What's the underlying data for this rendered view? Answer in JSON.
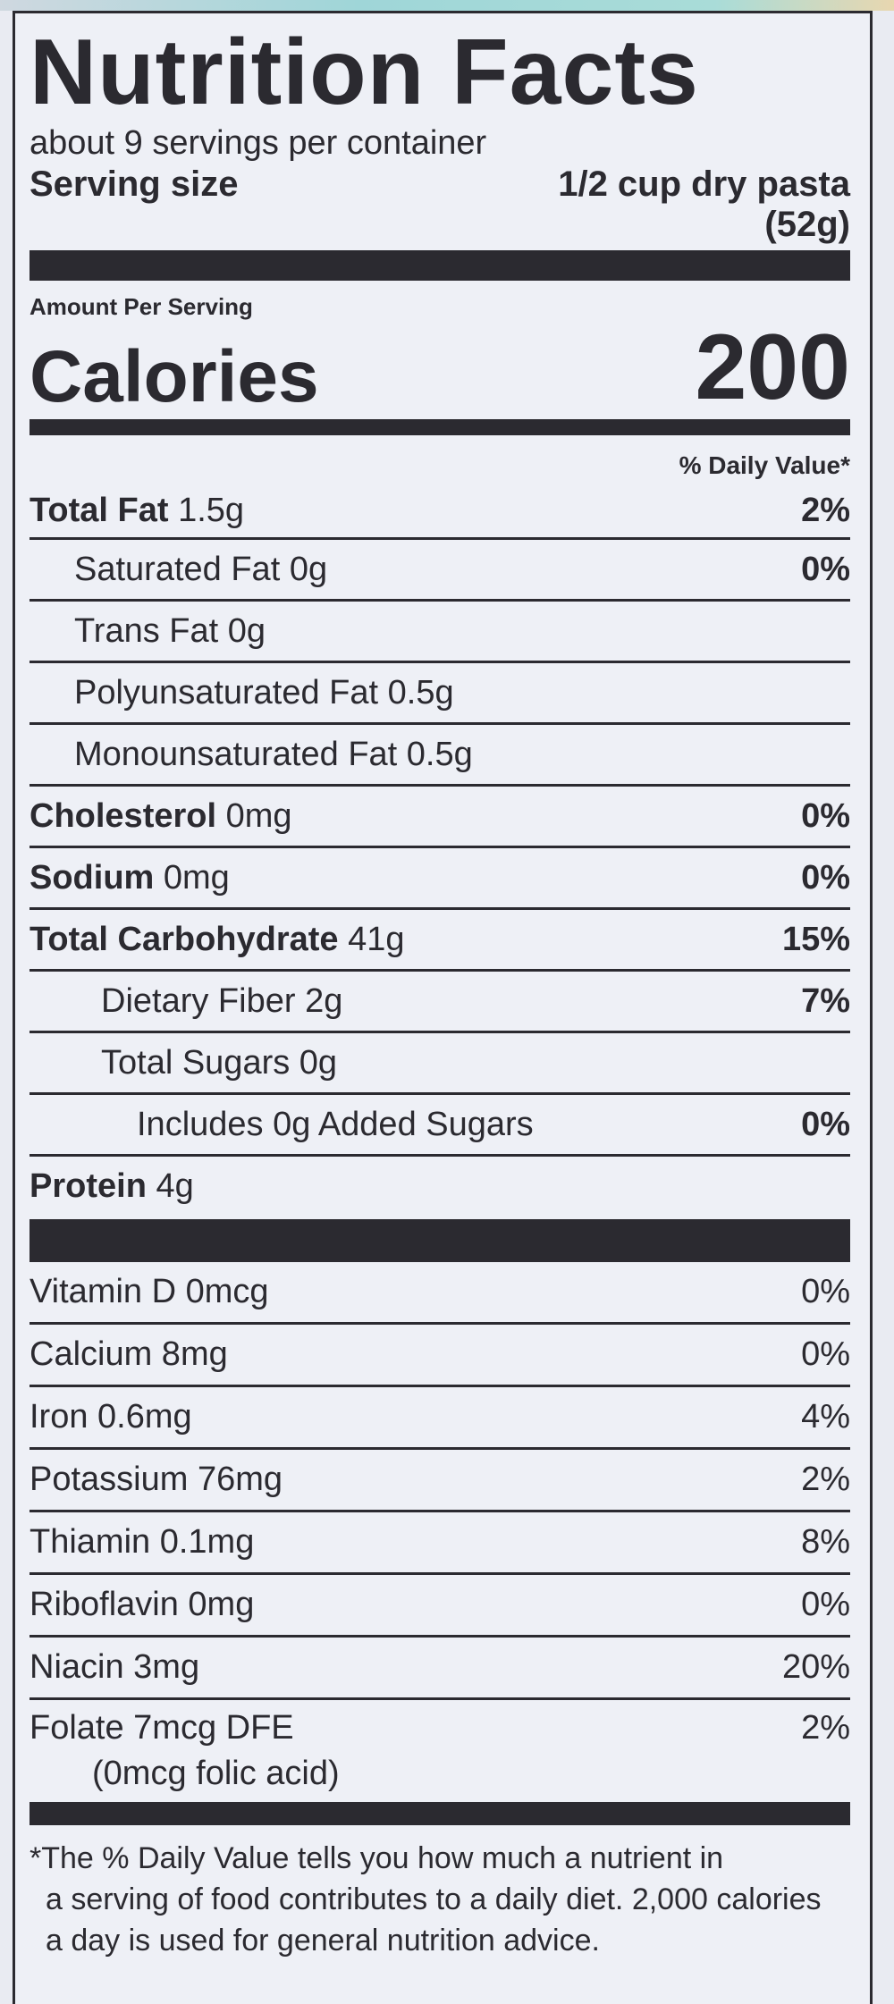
{
  "title": "Nutrition Facts",
  "servings_per_container": "about 9 servings per container",
  "serving_size": {
    "label": "Serving size",
    "value": "1/2 cup dry pasta",
    "grams": "(52g)"
  },
  "amount_per_serving": "Amount Per Serving",
  "calories": {
    "label": "Calories",
    "value": "200"
  },
  "daily_value_header": "% Daily Value*",
  "nutrients": [
    {
      "name": "Total Fat",
      "amount": "1.5g",
      "dv": "2%",
      "bold": true,
      "indent": 0
    },
    {
      "name": "Saturated Fat",
      "amount": "0g",
      "dv": "0%",
      "bold": false,
      "indent": 1
    },
    {
      "name": "Trans Fat",
      "amount": "0g",
      "dv": "",
      "bold": false,
      "indent": 1
    },
    {
      "name": "Polyunsaturated Fat",
      "amount": "0.5g",
      "dv": "",
      "bold": false,
      "indent": 1
    },
    {
      "name": "Monounsaturated Fat",
      "amount": "0.5g",
      "dv": "",
      "bold": false,
      "indent": 1
    },
    {
      "name": "Cholesterol",
      "amount": "0mg",
      "dv": "0%",
      "bold": true,
      "indent": 0
    },
    {
      "name": "Sodium",
      "amount": "0mg",
      "dv": "0%",
      "bold": true,
      "indent": 0
    },
    {
      "name": "Total Carbohydrate",
      "amount": "41g",
      "dv": "15%",
      "bold": true,
      "indent": 0
    },
    {
      "name": "Dietary Fiber",
      "amount": "2g",
      "dv": "7%",
      "bold": false,
      "indent": 1
    },
    {
      "name": "Total Sugars",
      "amount": "0g",
      "dv": "",
      "bold": false,
      "indent": 1
    },
    {
      "name": "Includes 0g Added Sugars",
      "amount": "",
      "dv": "0%",
      "bold": false,
      "indent": 2
    },
    {
      "name": "Protein",
      "amount": "4g",
      "dv": "",
      "bold": true,
      "indent": 0
    }
  ],
  "vitamins": [
    {
      "name": "Vitamin D 0mcg",
      "dv": "0%"
    },
    {
      "name": "Calcium 8mg",
      "dv": "0%"
    },
    {
      "name": "Iron 0.6mg",
      "dv": "4%"
    },
    {
      "name": "Potassium 76mg",
      "dv": "2%"
    },
    {
      "name": "Thiamin 0.1mg",
      "dv": "8%"
    },
    {
      "name": "Riboflavin 0mg",
      "dv": "0%"
    },
    {
      "name": "Niacin 3mg",
      "dv": "20%"
    }
  ],
  "folate": {
    "name": "Folate 7mcg DFE",
    "dv": "2%",
    "sub": "(0mcg folic acid)"
  },
  "footnote": [
    "*The % Daily Value tells you how much a nutrient in",
    "a serving of food contributes to a daily diet. 2,000 calories",
    "a day is used for general nutrition advice."
  ]
}
